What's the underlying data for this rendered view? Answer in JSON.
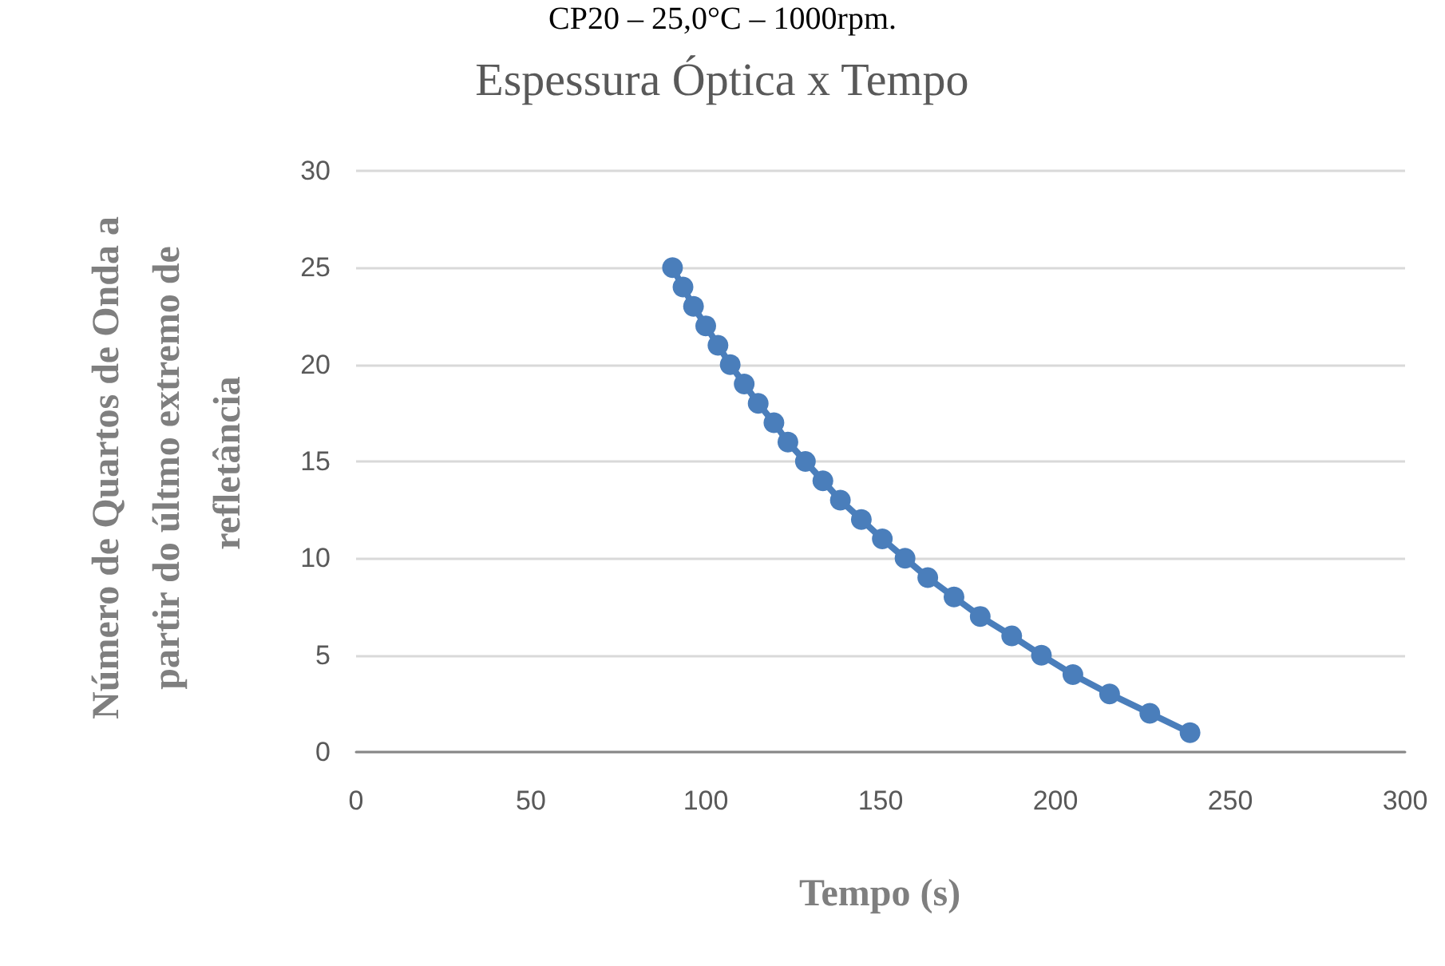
{
  "chart_data": {
    "type": "line",
    "title": "Espessura Óptica x Tempo",
    "annotations": [
      "CP20 – 25,0°C – 1000rpm."
    ],
    "xlabel": "Tempo (s)",
    "ylabel": "Número de Quartos de Onda a partir do últmo extremo de refletância",
    "x": [
      90.5,
      93.5,
      96.5,
      100,
      103.5,
      107,
      111,
      115,
      119.5,
      123.5,
      128.5,
      133.5,
      138.5,
      144.5,
      150.5,
      157,
      163.5,
      171,
      178.5,
      187.5,
      196,
      205,
      215.5,
      227,
      238.5
    ],
    "series": [
      {
        "color": "#4a7ebb",
        "values": [
          25,
          24,
          23,
          22,
          21,
          20,
          19,
          18,
          17,
          16,
          15,
          14,
          13,
          12,
          11,
          10,
          9,
          8,
          7,
          6,
          5,
          4,
          3,
          2,
          1
        ]
      }
    ],
    "xlim": [
      0,
      300
    ],
    "xticks": [
      0,
      50,
      100,
      150,
      200,
      250,
      300
    ],
    "ylim": [
      0,
      30
    ],
    "yticks": [
      0,
      5,
      10,
      15,
      20,
      25,
      30
    ],
    "grid": "y",
    "marker": "circle",
    "line_style": "solid"
  }
}
